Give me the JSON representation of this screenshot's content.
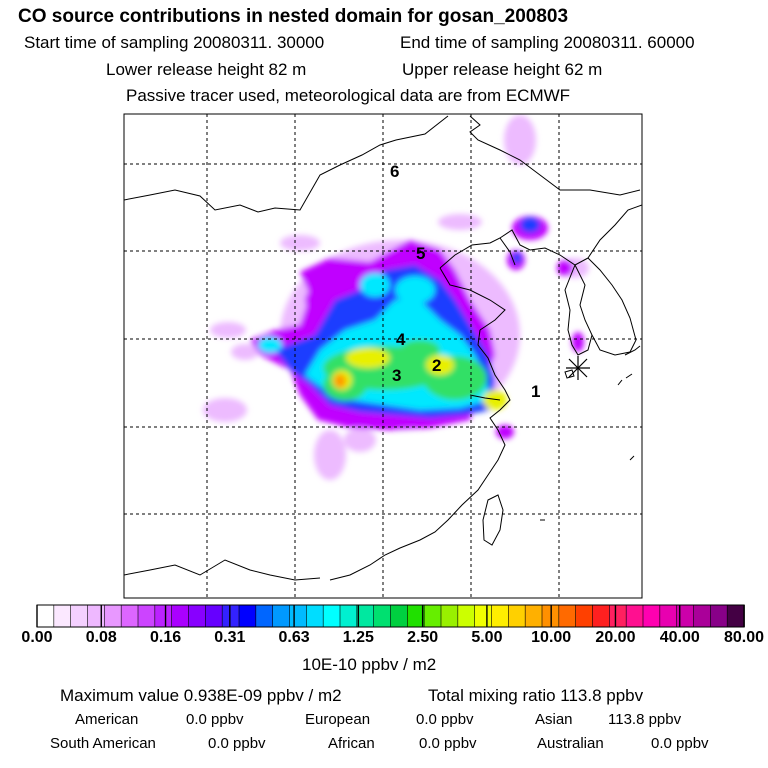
{
  "title": "CO  source contributions in nested domain for gosan_200803",
  "header": {
    "start_label": "Start time of sampling 20080311. 30000",
    "end_label": "End time of sampling 20080311. 60000",
    "lower_label": "Lower release height   82 m",
    "upper_label": "Upper release height   62 m",
    "note": "Passive tracer used, meteorological data are from ECMWF"
  },
  "map": {
    "region_labels": [
      "1",
      "2",
      "3",
      "4",
      "5",
      "6"
    ],
    "receptor_marker": "asterisk-icon",
    "colors": {
      "violet": "#cc00ff",
      "blue": "#2040ff",
      "cyan": "#00e8ff",
      "green": "#30e060",
      "yellow": "#f0f000",
      "orange": "#ff9900",
      "light_purple": "#e8a0ff"
    }
  },
  "legend": {
    "tick_labels": [
      "0.00",
      "0.08",
      "0.16",
      "0.31",
      "0.63",
      "1.25",
      "2.50",
      "5.00",
      "10.00",
      "20.00",
      "40.00",
      "80.00"
    ],
    "unit": "10E-10 ppbv / m2",
    "colors": [
      "#ffffff",
      "#fbe8ff",
      "#f4d0ff",
      "#eeb8ff",
      "#e898ff",
      "#dd66ff",
      "#cc44ff",
      "#bb22ff",
      "#aa00ff",
      "#8800ff",
      "#6600ff",
      "#3322ff",
      "#0000ff",
      "#0066ff",
      "#0099ff",
      "#00bbff",
      "#00ddff",
      "#00ffff",
      "#00f0d0",
      "#00e8a0",
      "#00e070",
      "#00d040",
      "#20e000",
      "#66ee00",
      "#99f000",
      "#ccff00",
      "#f0ff00",
      "#ffee00",
      "#ffd000",
      "#ffb000",
      "#ff9000",
      "#ff6a00",
      "#ff4000",
      "#ff2020",
      "#ff2060",
      "#ff1090",
      "#ff00b0",
      "#e800b0",
      "#cc00aa",
      "#aa0099",
      "#880088",
      "#440044"
    ]
  },
  "footer": {
    "max_value": "Maximum value  0.938E-09 ppbv / m2",
    "total": "Total mixing ratio       113.8 ppbv",
    "regions": [
      {
        "name": "American",
        "value": "0.0 ppbv"
      },
      {
        "name": "European",
        "value": "0.0 ppbv"
      },
      {
        "name": "Asian",
        "value": "113.8 ppbv"
      },
      {
        "name": "South American",
        "value": "0.0 ppbv"
      },
      {
        "name": "African",
        "value": "0.0 ppbv"
      },
      {
        "name": "Australian",
        "value": "0.0 ppbv"
      }
    ]
  }
}
